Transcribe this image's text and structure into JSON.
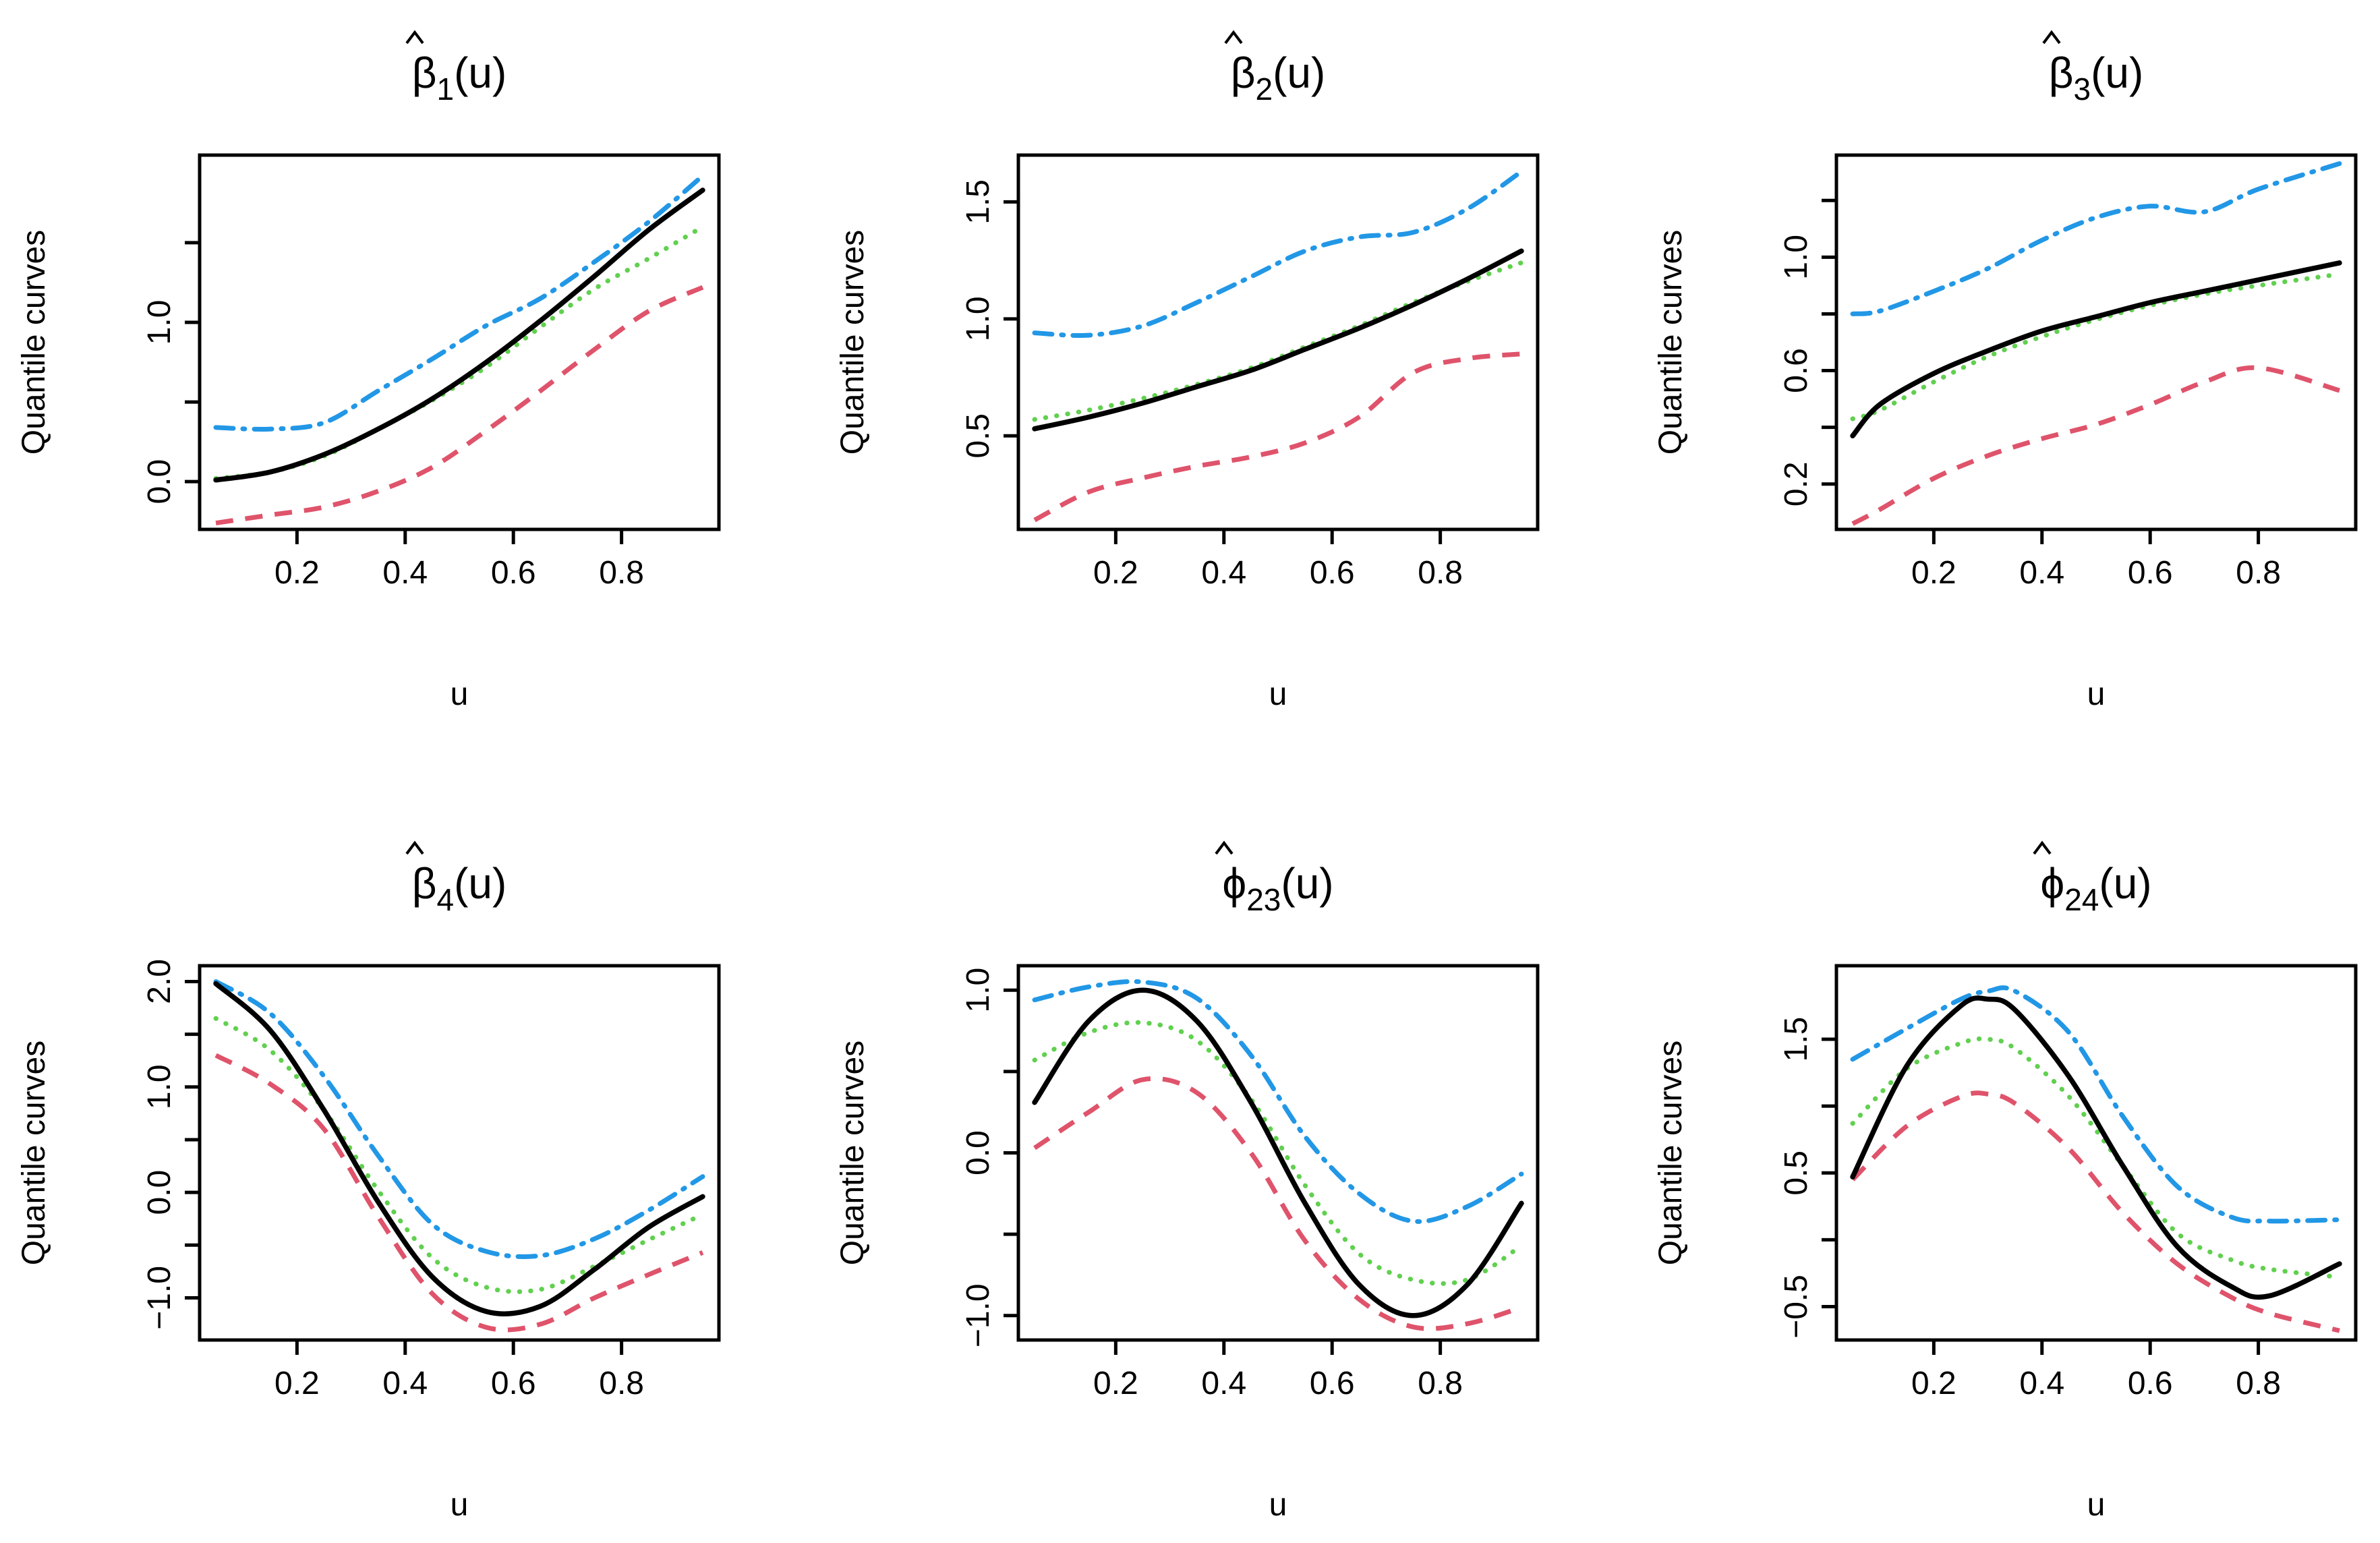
{
  "colors": {
    "true_curve": "#000000",
    "q_low": "#DF536B",
    "q_mid": "#61D04F",
    "q_high": "#2297E6"
  },
  "chart_data": [
    {
      "type": "line",
      "title_symbol": "β",
      "title_subscript": "1",
      "title_suffix": "(u)",
      "xlabel": "u",
      "ylabel": "Quantile curves",
      "xlim": [
        0.02,
        0.98
      ],
      "ylim": [
        -0.3,
        2.05
      ],
      "xticks": [
        0.2,
        0.4,
        0.6,
        0.8
      ],
      "xtick_labels": [
        "0.2",
        "0.4",
        "0.6",
        "0.8"
      ],
      "yticks": [
        0.0,
        1.0
      ],
      "ytick_labels": [
        "0.0",
        "1.0"
      ],
      "ytick_minor": [
        0.5,
        1.5
      ],
      "x": [
        0.05,
        0.15,
        0.25,
        0.35,
        0.45,
        0.55,
        0.65,
        0.75,
        0.85,
        0.95
      ],
      "series": [
        {
          "role": "true",
          "style": "solid",
          "values": [
            0.01,
            0.06,
            0.17,
            0.33,
            0.52,
            0.75,
            1.01,
            1.29,
            1.58,
            1.83
          ]
        },
        {
          "role": "high",
          "style": "dashdot",
          "values": [
            0.34,
            0.33,
            0.37,
            0.57,
            0.77,
            0.98,
            1.15,
            1.38,
            1.63,
            1.92
          ]
        },
        {
          "role": "mid",
          "style": "dotted",
          "values": [
            0.02,
            0.06,
            0.16,
            0.33,
            0.51,
            0.72,
            0.97,
            1.21,
            1.4,
            1.6
          ]
        },
        {
          "role": "low",
          "style": "dashed",
          "values": [
            -0.26,
            -0.21,
            -0.16,
            -0.06,
            0.09,
            0.32,
            0.57,
            0.83,
            1.07,
            1.22
          ]
        }
      ]
    },
    {
      "type": "line",
      "title_symbol": "β",
      "title_subscript": "2",
      "title_suffix": "(u)",
      "xlabel": "u",
      "ylabel": "Quantile curves",
      "xlim": [
        0.02,
        0.98
      ],
      "ylim": [
        0.1,
        1.7
      ],
      "xticks": [
        0.2,
        0.4,
        0.6,
        0.8
      ],
      "xtick_labels": [
        "0.2",
        "0.4",
        "0.6",
        "0.8"
      ],
      "yticks": [
        0.5,
        1.0,
        1.5
      ],
      "ytick_labels": [
        "0.5",
        "1.0",
        "1.5"
      ],
      "ytick_minor": [],
      "x": [
        0.05,
        0.15,
        0.25,
        0.35,
        0.45,
        0.55,
        0.65,
        0.75,
        0.85,
        0.95
      ],
      "series": [
        {
          "role": "true",
          "style": "solid",
          "values": [
            0.53,
            0.58,
            0.64,
            0.71,
            0.78,
            0.87,
            0.96,
            1.06,
            1.17,
            1.29
          ]
        },
        {
          "role": "high",
          "style": "dashdot",
          "values": [
            0.94,
            0.93,
            0.97,
            1.07,
            1.18,
            1.29,
            1.35,
            1.37,
            1.47,
            1.63
          ]
        },
        {
          "role": "mid",
          "style": "dotted",
          "values": [
            0.57,
            0.61,
            0.66,
            0.72,
            0.79,
            0.88,
            0.97,
            1.07,
            1.16,
            1.24
          ]
        },
        {
          "role": "low",
          "style": "dashed",
          "values": [
            0.14,
            0.26,
            0.32,
            0.37,
            0.41,
            0.47,
            0.58,
            0.77,
            0.83,
            0.85
          ]
        }
      ]
    },
    {
      "type": "line",
      "title_symbol": "β",
      "title_subscript": "3",
      "title_suffix": "(u)",
      "xlabel": "u",
      "ylabel": "Quantile curves",
      "xlim": [
        0.02,
        0.98
      ],
      "ylim": [
        0.04,
        1.36
      ],
      "xticks": [
        0.2,
        0.4,
        0.6,
        0.8
      ],
      "xtick_labels": [
        "0.2",
        "0.4",
        "0.6",
        "0.8"
      ],
      "yticks": [
        0.2,
        0.6,
        1.0
      ],
      "ytick_labels": [
        "0.2",
        "0.6",
        "1.0"
      ],
      "ytick_minor": [
        0.4,
        0.8,
        1.2
      ],
      "x": [
        0.05,
        0.1,
        0.2,
        0.3,
        0.4,
        0.5,
        0.6,
        0.7,
        0.8,
        0.95
      ],
      "series": [
        {
          "role": "true",
          "style": "solid",
          "values": [
            0.37,
            0.48,
            0.59,
            0.67,
            0.74,
            0.79,
            0.84,
            0.88,
            0.92,
            0.98
          ]
        },
        {
          "role": "high",
          "style": "dashdot",
          "values": [
            0.8,
            0.81,
            0.88,
            0.96,
            1.06,
            1.14,
            1.18,
            1.16,
            1.24,
            1.33
          ]
        },
        {
          "role": "mid",
          "style": "dotted",
          "values": [
            0.43,
            0.46,
            0.56,
            0.65,
            0.72,
            0.78,
            0.83,
            0.87,
            0.9,
            0.94
          ]
        },
        {
          "role": "low",
          "style": "dashed",
          "values": [
            0.06,
            0.11,
            0.22,
            0.3,
            0.36,
            0.41,
            0.48,
            0.56,
            0.61,
            0.53
          ]
        }
      ]
    },
    {
      "type": "line",
      "title_symbol": "β",
      "title_subscript": "4",
      "title_suffix": "(u)",
      "xlabel": "u",
      "ylabel": "Quantile curves",
      "xlim": [
        0.02,
        0.98
      ],
      "ylim": [
        -1.4,
        2.15
      ],
      "xticks": [
        0.2,
        0.4,
        0.6,
        0.8
      ],
      "xtick_labels": [
        "0.2",
        "0.4",
        "0.6",
        "0.8"
      ],
      "yticks": [
        -1.0,
        0.0,
        1.0,
        2.0
      ],
      "ytick_labels": [
        "−1.0",
        "0.0",
        "1.0",
        "2.0"
      ],
      "ytick_minor": [
        -0.5,
        0.5,
        1.5
      ],
      "x": [
        0.05,
        0.15,
        0.25,
        0.35,
        0.45,
        0.55,
        0.65,
        0.75,
        0.85,
        0.95
      ],
      "series": [
        {
          "role": "true",
          "style": "solid",
          "values": [
            1.98,
            1.54,
            0.78,
            -0.09,
            -0.8,
            -1.13,
            -1.08,
            -0.73,
            -0.33,
            -0.04
          ]
        },
        {
          "role": "high",
          "style": "dashdot",
          "values": [
            2.0,
            1.7,
            1.1,
            0.35,
            -0.3,
            -0.56,
            -0.6,
            -0.44,
            -0.17,
            0.15
          ]
        },
        {
          "role": "mid",
          "style": "dotted",
          "values": [
            1.65,
            1.35,
            0.78,
            0.02,
            -0.62,
            -0.9,
            -0.92,
            -0.7,
            -0.45,
            -0.21
          ]
        },
        {
          "role": "low",
          "style": "dashed",
          "values": [
            1.3,
            1.03,
            0.6,
            -0.23,
            -0.96,
            -1.28,
            -1.25,
            -1.0,
            -0.78,
            -0.57
          ]
        }
      ]
    },
    {
      "type": "line",
      "title_symbol": "ϕ",
      "title_subscript": "23",
      "title_suffix": "(u)",
      "xlabel": "u",
      "ylabel": "Quantile curves",
      "xlim": [
        0.02,
        0.98
      ],
      "ylim": [
        -1.15,
        1.15
      ],
      "xticks": [
        0.2,
        0.4,
        0.6,
        0.8
      ],
      "xtick_labels": [
        "0.2",
        "0.4",
        "0.6",
        "0.8"
      ],
      "yticks": [
        -1.0,
        0.0,
        1.0
      ],
      "ytick_labels": [
        "−1.0",
        "0.0",
        "1.0"
      ],
      "ytick_minor": [
        -0.5,
        0.5
      ],
      "x": [
        0.05,
        0.15,
        0.25,
        0.35,
        0.45,
        0.55,
        0.65,
        0.75,
        0.85,
        0.95
      ],
      "series": [
        {
          "role": "true",
          "style": "solid",
          "values": [
            0.31,
            0.81,
            1.0,
            0.81,
            0.31,
            -0.31,
            -0.81,
            -1.0,
            -0.81,
            -0.31
          ]
        },
        {
          "role": "high",
          "style": "dashdot",
          "values": [
            0.94,
            1.02,
            1.05,
            0.95,
            0.6,
            0.1,
            -0.25,
            -0.42,
            -0.33,
            -0.13
          ]
        },
        {
          "role": "mid",
          "style": "dotted",
          "values": [
            0.57,
            0.74,
            0.8,
            0.69,
            0.33,
            -0.2,
            -0.62,
            -0.78,
            -0.78,
            -0.57
          ]
        },
        {
          "role": "low",
          "style": "dashed",
          "values": [
            0.03,
            0.25,
            0.45,
            0.37,
            0.0,
            -0.54,
            -0.9,
            -1.07,
            -1.05,
            -0.95
          ]
        }
      ]
    },
    {
      "type": "line",
      "title_symbol": "ϕ",
      "title_subscript": "24",
      "title_suffix": "(u)",
      "xlabel": "u",
      "ylabel": "Quantile curves",
      "xlim": [
        0.02,
        0.98
      ],
      "ylim": [
        -0.75,
        2.05
      ],
      "xticks": [
        0.2,
        0.4,
        0.6,
        0.8
      ],
      "xtick_labels": [
        "0.2",
        "0.4",
        "0.6",
        "0.8"
      ],
      "yticks": [
        -0.5,
        0.5,
        1.5
      ],
      "ytick_labels": [
        "−0.5",
        "0.5",
        "1.5"
      ],
      "ytick_minor": [
        0.0,
        1.0
      ],
      "x": [
        0.05,
        0.15,
        0.25,
        0.3,
        0.35,
        0.45,
        0.55,
        0.65,
        0.75,
        0.82,
        0.95
      ],
      "series": [
        {
          "role": "true",
          "style": "solid",
          "values": [
            0.47,
            1.3,
            1.75,
            1.8,
            1.72,
            1.22,
            0.55,
            -0.05,
            -0.35,
            -0.42,
            -0.18
          ]
        },
        {
          "role": "high",
          "style": "dashdot",
          "values": [
            1.35,
            1.58,
            1.8,
            1.86,
            1.86,
            1.55,
            0.92,
            0.4,
            0.17,
            0.14,
            0.15
          ]
        },
        {
          "role": "mid",
          "style": "dotted",
          "values": [
            0.87,
            1.28,
            1.47,
            1.5,
            1.43,
            1.07,
            0.55,
            0.05,
            -0.15,
            -0.22,
            -0.28
          ]
        },
        {
          "role": "low",
          "style": "dashed",
          "values": [
            0.45,
            0.85,
            1.07,
            1.09,
            1.02,
            0.68,
            0.2,
            -0.18,
            -0.43,
            -0.55,
            -0.68
          ]
        }
      ]
    }
  ]
}
